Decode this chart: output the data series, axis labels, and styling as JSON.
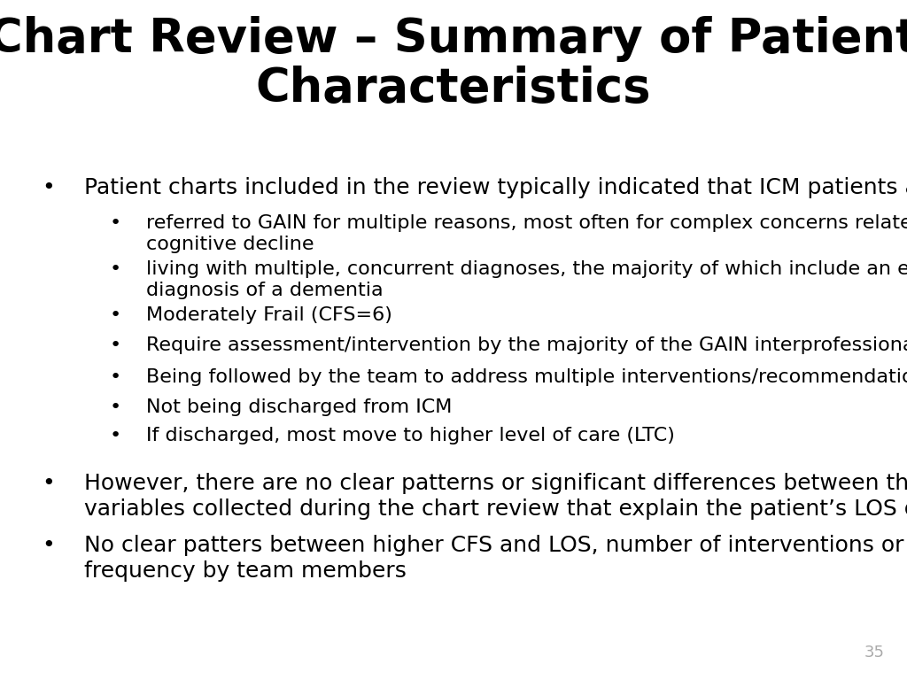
{
  "title_line1": "Chart Review – Summary of Patient",
  "title_line2": "Characteristics",
  "title_fontsize": 38,
  "title_fontweight": "bold",
  "title_color": "#000000",
  "background_color": "#ffffff",
  "text_color": "#000000",
  "body_fontsize": 18,
  "sub_fontsize": 16,
  "page_number": "35",
  "page_number_color": "#aaaaaa",
  "page_number_fontsize": 13,
  "bullet1": "Patient charts included in the review typically indicated that ICM patients are:",
  "sub_bullets": [
    "referred to GAIN for multiple reasons, most often for complex concerns related to\ncognitive decline",
    "living with multiple, concurrent diagnoses, the majority of which include an existing\ndiagnosis of a dementia",
    "Moderately Frail (CFS=6)",
    "Require assessment/intervention by the majority of the GAIN interprofessional team",
    "Being followed by the team to address multiple interventions/recommendations",
    "Not being discharged from ICM",
    "If discharged, most move to higher level of care (LTC)"
  ],
  "bullet2": "However, there are no clear patterns or significant differences between the\nvariables collected during the chart review that explain the patient’s LOS on ICM",
  "bullet3": "No clear patters between higher CFS and LOS, number of interventions or visit\nfrequency by team members"
}
